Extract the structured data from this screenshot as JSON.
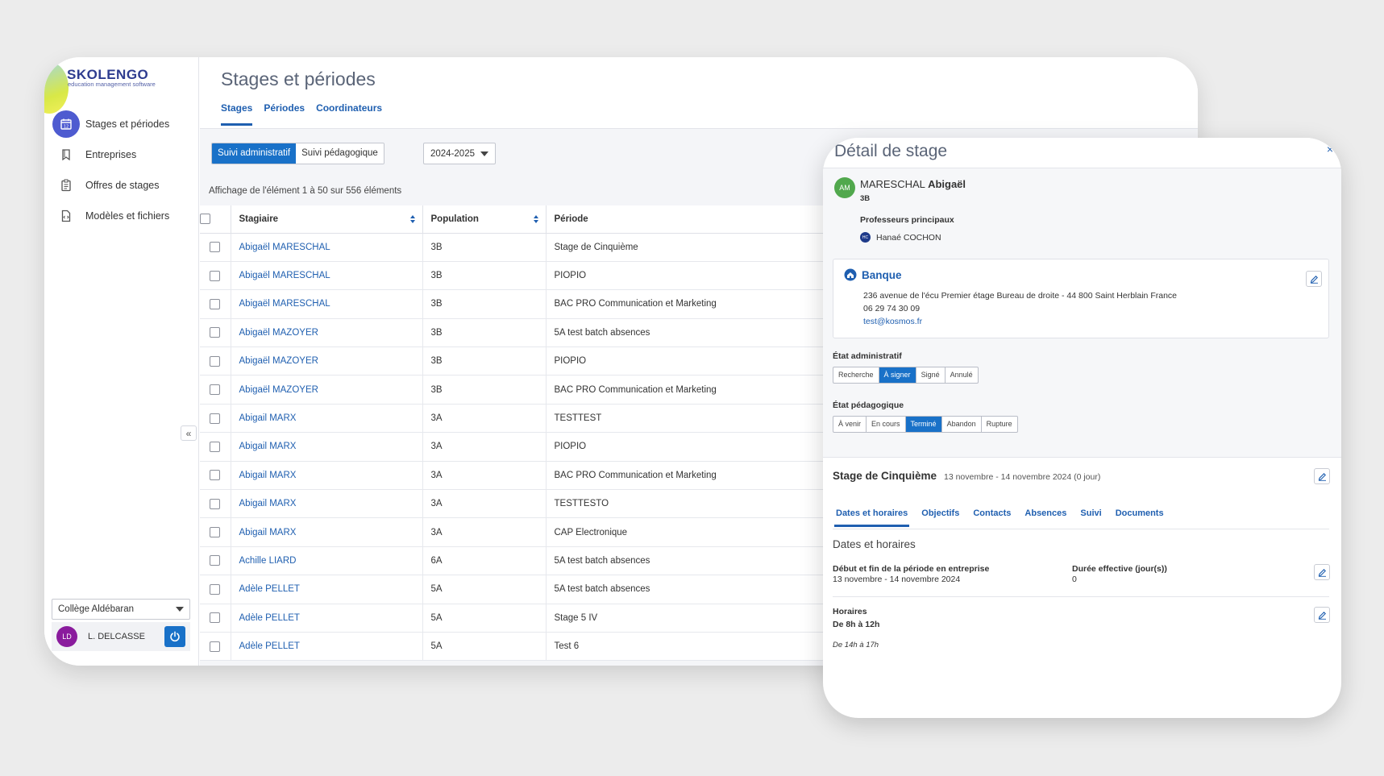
{
  "sidebar": {
    "logo_title": "SKOLENGO",
    "logo_subtitle": "education management software",
    "items": [
      {
        "label": "Stages et périodes",
        "icon": "calendar-icon",
        "active": true
      },
      {
        "label": "Entreprises",
        "icon": "bookmark-icon",
        "active": false
      },
      {
        "label": "Offres de stages",
        "icon": "clipboard-icon",
        "active": false
      },
      {
        "label": "Modèles et fichiers",
        "icon": "file-code-icon",
        "active": false
      }
    ],
    "college": "Collège Aldébaran",
    "user_initials": "LD",
    "user_name": "L. DELCASSE",
    "collapse_label": "«"
  },
  "header": {
    "title": "Stages et périodes",
    "tabs": [
      "Stages",
      "Périodes",
      "Coordinateurs"
    ]
  },
  "toolbar": {
    "seg_admin": "Suivi administratif",
    "seg_peda": "Suivi pédagogique",
    "year": "2024-2025",
    "pager": "Affichage de l'élément 1 à 50 sur 556 éléments"
  },
  "table": {
    "headers": [
      "Stagiaire",
      "Population",
      "Période"
    ],
    "rows": [
      {
        "name": "Abigaël MARESCHAL",
        "population": "3B",
        "periode": "Stage de Cinquième"
      },
      {
        "name": "Abigaël MARESCHAL",
        "population": "3B",
        "periode": "PIOPIO"
      },
      {
        "name": "Abigaël MARESCHAL",
        "population": "3B",
        "periode": "BAC PRO Communication et Marketing"
      },
      {
        "name": "Abigaël MAZOYER",
        "population": "3B",
        "periode": "5A test batch absences"
      },
      {
        "name": "Abigaël MAZOYER",
        "population": "3B",
        "periode": "PIOPIO"
      },
      {
        "name": "Abigaël MAZOYER",
        "population": "3B",
        "periode": "BAC PRO Communication et Marketing"
      },
      {
        "name": "Abigail MARX",
        "population": "3A",
        "periode": "TESTTEST"
      },
      {
        "name": "Abigail MARX",
        "population": "3A",
        "periode": "PIOPIO"
      },
      {
        "name": "Abigail MARX",
        "population": "3A",
        "periode": "BAC PRO Communication et Marketing"
      },
      {
        "name": "Abigail MARX",
        "population": "3A",
        "periode": "TESTTESTO"
      },
      {
        "name": "Abigail MARX",
        "population": "3A",
        "periode": "CAP Electronique"
      },
      {
        "name": "Achille LIARD",
        "population": "6A",
        "periode": "5A test batch absences"
      },
      {
        "name": "Adèle PELLET",
        "population": "5A",
        "periode": "5A test batch absences"
      },
      {
        "name": "Adèle PELLET",
        "population": "5A",
        "periode": "Stage 5 IV"
      },
      {
        "name": "Adèle PELLET",
        "population": "5A",
        "periode": "Test 6"
      }
    ]
  },
  "detail": {
    "title": "Détail de stage",
    "close": "×",
    "avatar_initials": "AM",
    "student_last": "MARESCHAL",
    "student_first": "Abigaël",
    "student_class": "3B",
    "prof_label": "Professeurs principaux",
    "prof_initials": "HC",
    "prof_name": "Hanaé COCHON",
    "company": {
      "name": "Banque",
      "address": "236 avenue de l'écu Premier étage Bureau de droite - 44 800 Saint Herblain France",
      "phone": "06 29 74 30 09",
      "email": "test@kosmos.fr"
    },
    "etat_admin_label": "État administratif",
    "etat_admin": [
      {
        "label": "Recherche",
        "active": false
      },
      {
        "label": "À signer",
        "active": true
      },
      {
        "label": "Signé",
        "active": false
      },
      {
        "label": "Annulé",
        "active": false
      }
    ],
    "etat_peda_label": "État pédagogique",
    "etat_peda": [
      {
        "label": "À venir",
        "active": false
      },
      {
        "label": "En cours",
        "active": false
      },
      {
        "label": "Terminé",
        "active": true
      },
      {
        "label": "Abandon",
        "active": false
      },
      {
        "label": "Rupture",
        "active": false
      }
    ],
    "stage_title": "Stage de Cinquième",
    "stage_dates": "13 novembre - 14 novembre 2024 (0 jour)",
    "tabs": [
      "Dates et horaires",
      "Objectifs",
      "Contacts",
      "Absences",
      "Suivi",
      "Documents"
    ],
    "section_title": "Dates et horaires",
    "debut_label": "Début et fin de la période en entreprise",
    "debut_value": "13 novembre - 14 novembre 2024",
    "duree_label": "Durée effective (jour(s))",
    "duree_value": "0",
    "horaires_label": "Horaires",
    "horaires_value1": "De 8h à 12h",
    "horaires_value2": "De 14h à 17h"
  }
}
